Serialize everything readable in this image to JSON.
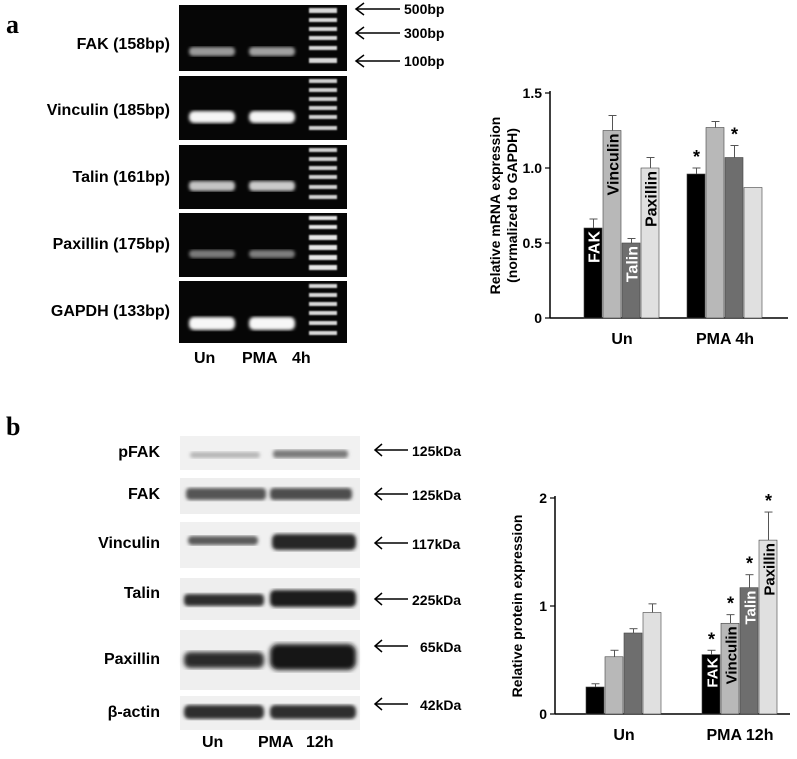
{
  "panel_a": {
    "letter": "a",
    "gel_labels": [
      "FAK (158bp)",
      "Vinculin (185bp)",
      "Talin (161bp)",
      "Paxillin (175bp)",
      "GAPDH (133bp)"
    ],
    "markers": [
      "500bp",
      "300bp",
      "100bp"
    ],
    "lane_labels": [
      "Un",
      "PMA",
      "4h"
    ]
  },
  "panel_b": {
    "letter": "b",
    "blot_labels": [
      "pFAK",
      "FAK",
      "Vinculin",
      "Talin",
      "Paxillin",
      "β-actin"
    ],
    "sizes": [
      "125kDa",
      "125kDa",
      "117kDa",
      "225kDa",
      "65kDa",
      "42kDa"
    ],
    "lane_labels": [
      "Un",
      "PMA",
      "12h"
    ]
  },
  "colors": {
    "FAK": "#000000",
    "Vinculin": "#b8b8b8",
    "Talin": "#6e6e6e",
    "Paxillin": "#e0e0e0"
  },
  "chart_data": [
    {
      "type": "bar",
      "ylabel": "Relative mRNA expression\n(normalized to GAPDH)",
      "categories": [
        "Un",
        "PMA  4h"
      ],
      "ylim": [
        0,
        1.5
      ],
      "yticks": [
        "0",
        "0.5",
        "1.0",
        "1.5"
      ],
      "series": [
        {
          "name": "FAK",
          "values": [
            0.6,
            0.96
          ],
          "errors": [
            0.06,
            0.04
          ],
          "significant": [
            false,
            true
          ]
        },
        {
          "name": "Vinculin",
          "values": [
            1.25,
            1.27
          ],
          "errors": [
            0.1,
            0.04
          ],
          "significant": [
            false,
            false
          ]
        },
        {
          "name": "Talin",
          "values": [
            0.5,
            1.07
          ],
          "errors": [
            0.03,
            0.08
          ],
          "significant": [
            false,
            true
          ]
        },
        {
          "name": "Paxillin",
          "values": [
            1.0,
            0.87
          ],
          "errors": [
            0.07,
            0.0
          ],
          "significant": [
            false,
            false
          ]
        }
      ],
      "bar_labels": [
        "FAK",
        "Vinculin",
        "Talin",
        "Paxillin"
      ],
      "sig_mark": "*"
    },
    {
      "type": "bar",
      "ylabel": "Relative protein expression",
      "categories": [
        "Un",
        "PMA  12h"
      ],
      "ylim": [
        0,
        2
      ],
      "yticks": [
        "0",
        "1",
        "2"
      ],
      "series": [
        {
          "name": "FAK",
          "values": [
            0.25,
            0.55
          ],
          "errors": [
            0.03,
            0.04
          ],
          "significant": [
            false,
            true
          ]
        },
        {
          "name": "Vinculin",
          "values": [
            0.53,
            0.84
          ],
          "errors": [
            0.06,
            0.08
          ],
          "significant": [
            false,
            true
          ]
        },
        {
          "name": "Talin",
          "values": [
            0.75,
            1.17
          ],
          "errors": [
            0.04,
            0.12
          ],
          "significant": [
            false,
            true
          ]
        },
        {
          "name": "Paxillin",
          "values": [
            0.94,
            1.61
          ],
          "errors": [
            0.08,
            0.26
          ],
          "significant": [
            false,
            true
          ]
        }
      ],
      "bar_labels": [
        "FAK",
        "Vinculin",
        "Talin",
        "Paxillin"
      ],
      "sig_mark": "*"
    }
  ]
}
